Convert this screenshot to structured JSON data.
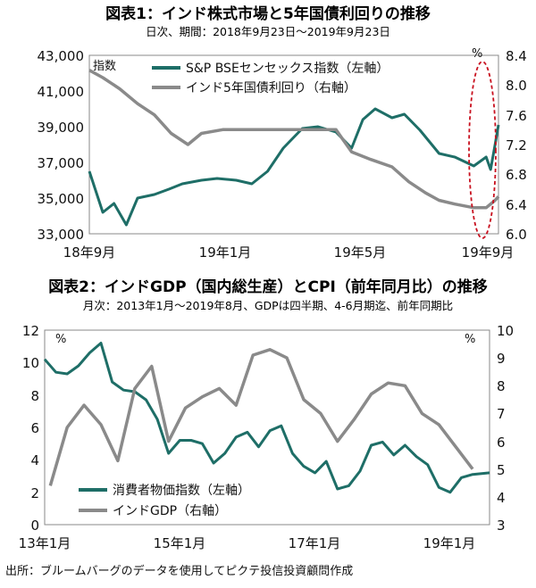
{
  "colors": {
    "teal": "#1e6e67",
    "gray": "#8a8a8a",
    "highlight": "#c8101e"
  },
  "chart1": {
    "title": "図表1：インド株式市場と5年国債利回りの推移",
    "subtitle": "日次、期間：2018年9月23日～2019年9月23日",
    "left_unit": "指数",
    "right_unit": "%",
    "left_ticks": [
      "43,000",
      "41,000",
      "39,000",
      "37,000",
      "35,000",
      "33,000"
    ],
    "right_ticks": [
      "8.4",
      "8.0",
      "7.6",
      "7.2",
      "6.8",
      "6.4",
      "6.0"
    ],
    "x_ticks": [
      "18年9月",
      "19年1月",
      "19年5月",
      "19年9月"
    ]
  },
  "chart2": {
    "title": "図表2：インドGDP（国内総生産）とCPI（前年同月比）の推移",
    "subtitle": "月次：2013年1月～2019年8月、GDPは四半期、4-6月期迄、前年同期比",
    "left_unit": "%",
    "right_unit": "%",
    "left_ticks": [
      "12",
      "10",
      "8",
      "6",
      "4",
      "2",
      "0"
    ],
    "right_ticks": [
      "10",
      "9",
      "8",
      "7",
      "6",
      "5",
      "4",
      "3"
    ],
    "x_ticks": [
      "13年1月",
      "15年1月",
      "17年1月",
      "19年1月"
    ]
  },
  "source": "出所：ブルームバーグのデータを使用してピクテ投信投資顧問作成",
  "chart_data": [
    {
      "type": "line",
      "title": "図表1：インド株式市場と5年国債利回りの推移",
      "subtitle": "日次、期間：2018年9月23日～2019年9月23日",
      "x_range": [
        "2018-09-23",
        "2019-09-23"
      ],
      "y_left": {
        "label": "指数",
        "lim": [
          33000,
          43000
        ]
      },
      "y_right": {
        "label": "%",
        "lim": [
          6.0,
          8.4
        ]
      },
      "series": [
        {
          "name": "S&P BSEセンセックス指数（左軸）",
          "axis": "left",
          "color": "#1e6e67",
          "x": [
            "2018-09-23",
            "2018-10-05",
            "2018-10-15",
            "2018-10-26",
            "2018-11-05",
            "2018-11-20",
            "2018-12-03",
            "2018-12-15",
            "2019-01-01",
            "2019-01-15",
            "2019-02-01",
            "2019-02-15",
            "2019-03-01",
            "2019-03-15",
            "2019-04-01",
            "2019-04-15",
            "2019-05-01",
            "2019-05-15",
            "2019-05-25",
            "2019-06-05",
            "2019-06-20",
            "2019-07-01",
            "2019-07-15",
            "2019-08-01",
            "2019-08-15",
            "2019-09-01",
            "2019-09-12",
            "2019-09-16",
            "2019-09-20",
            "2019-09-23"
          ],
          "y": [
            36500,
            34200,
            34700,
            33500,
            35000,
            35200,
            35500,
            35800,
            36000,
            36100,
            36000,
            35800,
            36500,
            37800,
            38900,
            39000,
            38700,
            37800,
            39400,
            40000,
            39500,
            39700,
            38800,
            37500,
            37300,
            36800,
            37300,
            36600,
            38000,
            39100
          ]
        },
        {
          "name": "インド5年国債利回り（右軸）",
          "axis": "right",
          "color": "#8a8a8a",
          "x": [
            "2018-09-23",
            "2018-10-05",
            "2018-10-20",
            "2018-11-05",
            "2018-11-20",
            "2018-12-05",
            "2018-12-20",
            "2019-01-01",
            "2019-01-20",
            "2019-02-15",
            "2019-03-15",
            "2019-04-15",
            "2019-05-01",
            "2019-05-15",
            "2019-06-01",
            "2019-06-20",
            "2019-07-05",
            "2019-07-20",
            "2019-08-01",
            "2019-08-15",
            "2019-09-01",
            "2019-09-12",
            "2019-09-20",
            "2019-09-23"
          ],
          "y": [
            8.2,
            8.1,
            7.95,
            7.75,
            7.6,
            7.35,
            7.2,
            7.35,
            7.4,
            7.4,
            7.4,
            7.4,
            7.4,
            7.1,
            7.0,
            6.9,
            6.7,
            6.55,
            6.45,
            6.4,
            6.35,
            6.35,
            6.45,
            6.5
          ]
        }
      ]
    },
    {
      "type": "line",
      "title": "図表2：インドGDP（国内総生産）とCPI（前年同月比）の推移",
      "subtitle": "月次：2013年1月～2019年8月、GDPは四半期、4-6月期迄、前年同期比",
      "x_range": [
        "2013-01",
        "2019-08"
      ],
      "y_left": {
        "label": "%",
        "lim": [
          0,
          12
        ]
      },
      "y_right": {
        "label": "%",
        "lim": [
          3,
          10
        ]
      },
      "series": [
        {
          "name": "消費者物価指数（左軸）",
          "axis": "left",
          "color": "#1e6e67",
          "x": [
            "2013-01",
            "2013-03",
            "2013-05",
            "2013-07",
            "2013-09",
            "2013-11",
            "2014-01",
            "2014-03",
            "2014-05",
            "2014-07",
            "2014-09",
            "2014-11",
            "2015-01",
            "2015-03",
            "2015-05",
            "2015-07",
            "2015-09",
            "2015-11",
            "2016-01",
            "2016-03",
            "2016-05",
            "2016-07",
            "2016-09",
            "2016-11",
            "2017-01",
            "2017-03",
            "2017-05",
            "2017-07",
            "2017-09",
            "2017-11",
            "2018-01",
            "2018-03",
            "2018-05",
            "2018-07",
            "2018-09",
            "2018-11",
            "2019-01",
            "2019-03",
            "2019-05",
            "2019-08"
          ],
          "y": [
            10.2,
            9.4,
            9.3,
            9.8,
            10.6,
            11.2,
            8.8,
            8.3,
            8.2,
            7.7,
            6.5,
            4.4,
            5.2,
            5.2,
            5.0,
            3.8,
            4.4,
            5.4,
            5.7,
            4.8,
            5.8,
            6.1,
            4.4,
            3.6,
            3.2,
            3.9,
            2.2,
            2.4,
            3.3,
            4.9,
            5.1,
            4.3,
            4.9,
            4.2,
            3.7,
            2.3,
            2.0,
            2.9,
            3.1,
            3.2
          ]
        },
        {
          "name": "インドGDP（右軸）",
          "axis": "right",
          "color": "#8a8a8a",
          "x": [
            "2013-02",
            "2013-05",
            "2013-08",
            "2013-11",
            "2014-02",
            "2014-05",
            "2014-08",
            "2014-11",
            "2015-02",
            "2015-05",
            "2015-08",
            "2015-11",
            "2016-02",
            "2016-05",
            "2016-08",
            "2016-11",
            "2017-02",
            "2017-05",
            "2017-08",
            "2017-11",
            "2018-02",
            "2018-05",
            "2018-08",
            "2018-11",
            "2019-02",
            "2019-05"
          ],
          "y": [
            4.4,
            6.5,
            7.3,
            6.6,
            5.3,
            7.9,
            8.7,
            6.0,
            7.2,
            7.6,
            7.9,
            7.3,
            9.1,
            9.3,
            9.0,
            7.5,
            7.0,
            6.0,
            6.8,
            7.7,
            8.1,
            8.0,
            7.0,
            6.6,
            5.8,
            5.0
          ]
        }
      ]
    }
  ]
}
